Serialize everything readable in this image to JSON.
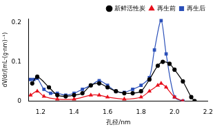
{
  "chart_data": {
    "type": "line",
    "x_label": "孔径/nm",
    "y_label": "dV/dr/(mL·(g·nm)⁻¹)",
    "xlim": [
      1.13,
      2.2
    ],
    "xticks": [
      1.2,
      1.4,
      1.6,
      1.8,
      {
        "value": 2,
        "label": "2.0"
      },
      2.2
    ],
    "ylim": [
      0,
      0.21
    ],
    "yticks": [
      0,
      0.1,
      0.2
    ],
    "grid": false,
    "legend": "top-right",
    "series": [
      {
        "name": "新鲜活性炭",
        "color": "#000000",
        "marker": "circle",
        "x": [
          1.15,
          1.18,
          1.25,
          1.3,
          1.35,
          1.4,
          1.45,
          1.5,
          1.55,
          1.6,
          1.65,
          1.7,
          1.75,
          1.8,
          1.85,
          1.9,
          1.93,
          1.97,
          2.0,
          2.05,
          2.1,
          2.12
        ],
        "values": [
          0.045,
          0.062,
          0.035,
          0.015,
          0.012,
          0.015,
          0.02,
          0.04,
          0.045,
          0.035,
          0.025,
          0.02,
          0.02,
          0.025,
          0.055,
          0.09,
          0.1,
          0.095,
          0.08,
          0.05,
          0.01,
          0
        ]
      },
      {
        "name": "再生前",
        "color": "#e8101c",
        "marker": "triangle",
        "x": [
          1.14,
          1.18,
          1.22,
          1.3,
          1.4,
          1.5,
          1.55,
          1.6,
          1.7,
          1.8,
          1.85,
          1.9,
          1.92,
          1.95,
          2.0,
          2.05
        ],
        "values": [
          0.015,
          0.025,
          0.012,
          0.005,
          0.005,
          0.015,
          0.015,
          0.01,
          0.005,
          0.01,
          0.025,
          0.04,
          0.045,
          0.035,
          0.01,
          0
        ]
      },
      {
        "name": "再生后",
        "color": "#2a4fb8",
        "marker": "square",
        "x": [
          1.14,
          1.16,
          1.18,
          1.22,
          1.26,
          1.3,
          1.35,
          1.4,
          1.45,
          1.5,
          1.55,
          1.6,
          1.65,
          1.7,
          1.75,
          1.8,
          1.85,
          1.88,
          1.92,
          1.95,
          2.0,
          2.05
        ],
        "values": [
          0.055,
          0.055,
          0.058,
          0.03,
          0.02,
          0.02,
          0.015,
          0.02,
          0.03,
          0.04,
          0.052,
          0.04,
          0.025,
          0.022,
          0.03,
          0.04,
          0.06,
          0.13,
          0.205,
          0.12,
          0.01,
          0
        ]
      }
    ]
  }
}
